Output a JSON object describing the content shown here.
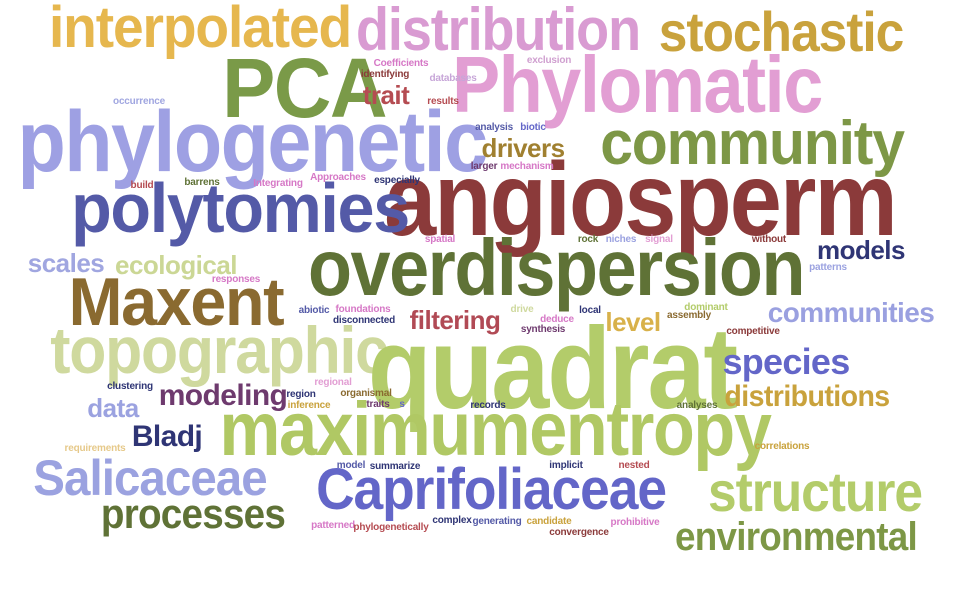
{
  "words": [
    {
      "text": "interpolated",
      "color": "#e6b74e"
    },
    {
      "text": "distribution",
      "color": "#d99bd2"
    },
    {
      "text": "stochastic",
      "color": "#c9a23c"
    },
    {
      "text": "PCA",
      "color": "#7a9a48"
    },
    {
      "text": "Phylomatic",
      "color": "#e29ed3"
    },
    {
      "text": "trait",
      "color": "#b54c52"
    },
    {
      "text": "phylogenetic",
      "color": "#9ea0e3"
    },
    {
      "text": "community",
      "color": "#7d9746"
    },
    {
      "text": "drivers",
      "color": "#a08030"
    },
    {
      "text": "angiosperm",
      "color": "#8b3a3a"
    },
    {
      "text": "polytomies",
      "color": "#545aa7"
    },
    {
      "text": "overdispersion",
      "color": "#5f7236"
    },
    {
      "text": "models",
      "color": "#2f3575"
    },
    {
      "text": "scales",
      "color": "#a0a6e0"
    },
    {
      "text": "ecological",
      "color": "#cbd795"
    },
    {
      "text": "Maxent",
      "color": "#8a6a30"
    },
    {
      "text": "filtering",
      "color": "#b14a55"
    },
    {
      "text": "level",
      "color": "#d8b14a"
    },
    {
      "text": "communities",
      "color": "#9aa0e0"
    },
    {
      "text": "topographic",
      "color": "#cfd99e"
    },
    {
      "text": "quadrat",
      "color": "#b3cc6a"
    },
    {
      "text": "species",
      "color": "#6366c8"
    },
    {
      "text": "modeling",
      "color": "#6e3a6e"
    },
    {
      "text": "data",
      "color": "#9ba2e0"
    },
    {
      "text": "distributions",
      "color": "#c9a23c"
    },
    {
      "text": "maximumentropy",
      "color": "#b0c864"
    },
    {
      "text": "Bladj",
      "color": "#2f3575"
    },
    {
      "text": "Salicaceae",
      "color": "#9ba2e0"
    },
    {
      "text": "Caprifoliaceae",
      "color": "#6366c8"
    },
    {
      "text": "structure",
      "color": "#b3cc6a"
    },
    {
      "text": "processes",
      "color": "#5f7236"
    },
    {
      "text": "environmental",
      "color": "#7d9746"
    },
    {
      "text": "Coefficients",
      "color": "#d678c6"
    },
    {
      "text": "exclusion",
      "color": "#d0a0d0"
    },
    {
      "text": "identifying",
      "color": "#8b3a3a"
    },
    {
      "text": "databases",
      "color": "#c7a6d8"
    },
    {
      "text": "results",
      "color": "#b54c52"
    },
    {
      "text": "occurrence",
      "color": "#a0a6e0"
    },
    {
      "text": "analysis",
      "color": "#545aa7"
    },
    {
      "text": "biotic",
      "color": "#6366c8"
    },
    {
      "text": "larger",
      "color": "#6e3a6e"
    },
    {
      "text": "mechanism",
      "color": "#d678c6"
    },
    {
      "text": "build",
      "color": "#b54c52"
    },
    {
      "text": "barrens",
      "color": "#5f7236"
    },
    {
      "text": "Integrating",
      "color": "#d678c6"
    },
    {
      "text": "Approaches",
      "color": "#d678c6"
    },
    {
      "text": "especially",
      "color": "#2f3575"
    },
    {
      "text": "spatial",
      "color": "#d678c6"
    },
    {
      "text": "rock",
      "color": "#5f7236"
    },
    {
      "text": "niches",
      "color": "#9ba2e0"
    },
    {
      "text": "signal",
      "color": "#e29ed3"
    },
    {
      "text": "without",
      "color": "#8b3a3a"
    },
    {
      "text": "patterns",
      "color": "#9ba2e0"
    },
    {
      "text": "responses",
      "color": "#d678c6"
    },
    {
      "text": "abiotic",
      "color": "#545aa7"
    },
    {
      "text": "foundations",
      "color": "#d678c6"
    },
    {
      "text": "disconnected",
      "color": "#2f3575"
    },
    {
      "text": "drive",
      "color": "#cfd99e"
    },
    {
      "text": "deduce",
      "color": "#d678c6"
    },
    {
      "text": "synthesis",
      "color": "#6e3a6e"
    },
    {
      "text": "local",
      "color": "#2f3575"
    },
    {
      "text": "dominant",
      "color": "#b3cc6a"
    },
    {
      "text": "assembly",
      "color": "#8a6a30"
    },
    {
      "text": "competitive",
      "color": "#8b3a3a"
    },
    {
      "text": "clustering",
      "color": "#2f3575"
    },
    {
      "text": "regional",
      "color": "#e29ed3"
    },
    {
      "text": "region",
      "color": "#2f3575"
    },
    {
      "text": "organismal",
      "color": "#8a6a30"
    },
    {
      "text": "inference",
      "color": "#c9a23c"
    },
    {
      "text": "traits",
      "color": "#6e3a6e"
    },
    {
      "text": "s",
      "color": "#6366c8"
    },
    {
      "text": "records",
      "color": "#2f3575"
    },
    {
      "text": "analyses",
      "color": "#5f7236"
    },
    {
      "text": "requirements",
      "color": "#e6c98a"
    },
    {
      "text": "correlations",
      "color": "#c9a23c"
    },
    {
      "text": "model",
      "color": "#545aa7"
    },
    {
      "text": "summarize",
      "color": "#2f3575"
    },
    {
      "text": "implicit",
      "color": "#2f3575"
    },
    {
      "text": "nested",
      "color": "#b54c52"
    },
    {
      "text": "patterned",
      "color": "#d678c6"
    },
    {
      "text": "phylogenetically",
      "color": "#b54c52"
    },
    {
      "text": "complex",
      "color": "#2f3575"
    },
    {
      "text": "generating",
      "color": "#545aa7"
    },
    {
      "text": "candidate",
      "color": "#c9a23c"
    },
    {
      "text": "prohibitive",
      "color": "#d678c6"
    },
    {
      "text": "convergence",
      "color": "#8b3a3a"
    }
  ]
}
